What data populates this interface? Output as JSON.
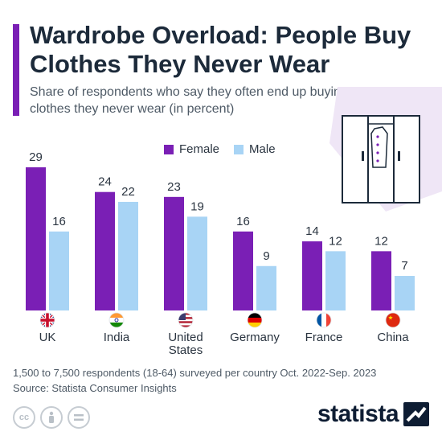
{
  "header": {
    "title": "Wardrobe Overload: People Buy Clothes They Never Wear",
    "subtitle": "Share of respondents who say they often end up buying clothes they never wear (in percent)"
  },
  "chart_data": {
    "type": "bar",
    "categories": [
      "UK",
      "India",
      "United States",
      "Germany",
      "France",
      "China"
    ],
    "series": [
      {
        "name": "Female",
        "values": [
          29,
          24,
          23,
          16,
          14,
          12
        ],
        "color": "#7a1fb5"
      },
      {
        "name": "Male",
        "values": [
          16,
          22,
          19,
          9,
          12,
          7
        ],
        "color": "#a8d4f5"
      }
    ],
    "flags": [
      "uk-flag-icon",
      "india-flag-icon",
      "united-states-flag-icon",
      "germany-flag-icon",
      "france-flag-icon",
      "china-flag-icon"
    ],
    "ylim": [
      0,
      29
    ],
    "grid": false,
    "legend_position": "top-center",
    "data_labels": true
  },
  "footer": {
    "note": "1,500 to 7,500 respondents (18-64) surveyed per country Oct. 2022-Sep. 2023",
    "source": "Source: Statista Consumer Insights",
    "brand": "statista",
    "license_icons": [
      "creative-commons-icon",
      "attribution-icon",
      "no-derivatives-icon"
    ]
  },
  "colors": {
    "accent": "#7a1fb5",
    "female": "#7a1fb5",
    "male": "#a8d4f5",
    "title": "#1c2a3a"
  }
}
